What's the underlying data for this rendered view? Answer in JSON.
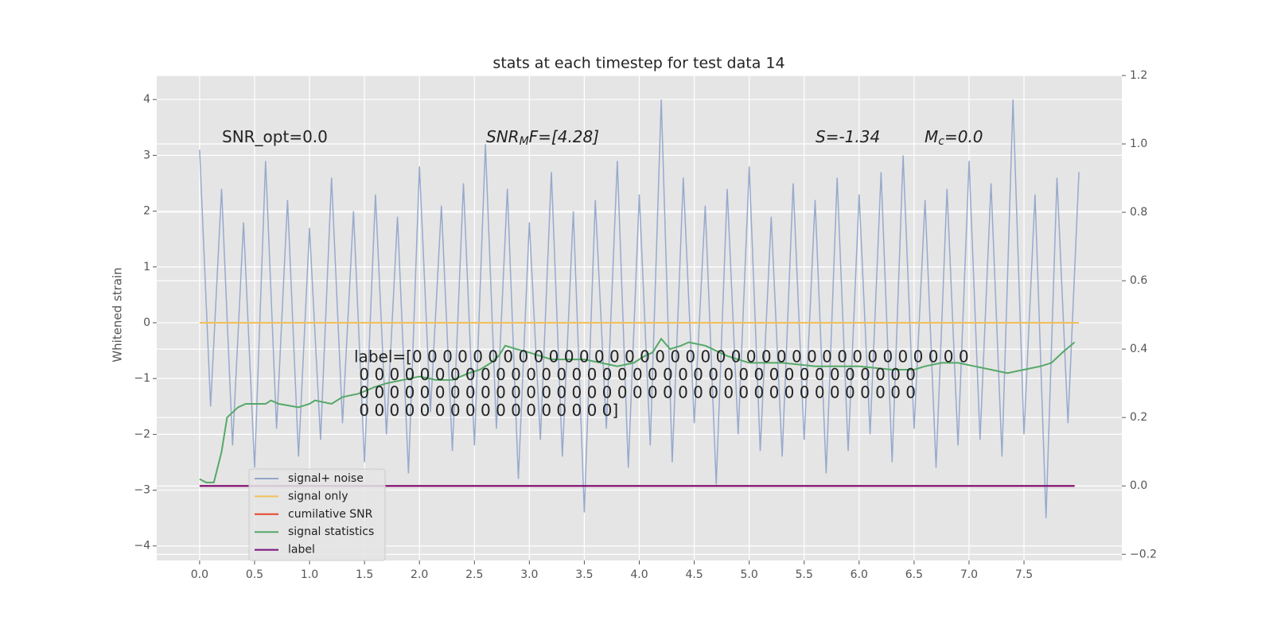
{
  "chart_data": {
    "type": "line",
    "title": "stats at each timestep for test data 14",
    "ylabel": "Whitened strain",
    "xlim": [
      -0.39,
      8.39
    ],
    "ylim": [
      -4.26,
      4.43
    ],
    "y2lim": [
      -0.218,
      1.2
    ],
    "grid": true,
    "legend": "lower left",
    "xticks": [
      {
        "value": 0,
        "label": "0.0"
      },
      {
        "value": 0.5,
        "label": "0.5"
      },
      {
        "value": 1,
        "label": "1.0"
      },
      {
        "value": 1.5,
        "label": "1.5"
      },
      {
        "value": 2,
        "label": "2.0"
      },
      {
        "value": 2.5,
        "label": "2.5"
      },
      {
        "value": 3,
        "label": "3.0"
      },
      {
        "value": 3.5,
        "label": "3.5"
      },
      {
        "value": 4,
        "label": "4.0"
      },
      {
        "value": 4.5,
        "label": "4.5"
      },
      {
        "value": 5,
        "label": "5.0"
      },
      {
        "value": 5.5,
        "label": "5.5"
      },
      {
        "value": 6,
        "label": "6.0"
      },
      {
        "value": 6.5,
        "label": "6.5"
      },
      {
        "value": 7,
        "label": "7.0"
      },
      {
        "value": 7.5,
        "label": "7.5"
      }
    ],
    "yticks": [
      {
        "value": -4,
        "label": "−4"
      },
      {
        "value": -3,
        "label": "−3"
      },
      {
        "value": -2,
        "label": "−2"
      },
      {
        "value": -1,
        "label": "−1"
      },
      0,
      1,
      2,
      3,
      4
    ],
    "y2ticks": [
      {
        "value": -0.2,
        "label": "−0.2"
      },
      {
        "value": 0,
        "label": "0.0"
      },
      {
        "value": 0.2,
        "label": "0.2"
      },
      {
        "value": 0.4,
        "label": "0.4"
      },
      {
        "value": 0.6,
        "label": "0.6"
      },
      {
        "value": 0.8,
        "label": "0.8"
      },
      {
        "value": 1,
        "label": "1.0"
      },
      {
        "value": 1.2,
        "label": "1.2"
      }
    ],
    "annotations": [
      {
        "main": "SNR_opt=0.0"
      },
      {
        "main": "SNR",
        "sub": "M",
        "rest": "F=[4.28]"
      },
      {
        "main": "S",
        "rest": "=-1.34"
      },
      {
        "main": "M",
        "sub": "c",
        "rest": "=0.0"
      }
    ],
    "label_text": [
      "label=[0 0 0 0 0 0 0 0 0 0 0 0 0 0 0 0 0 0 0 0 0 0 0 0 0 0 0 0 0 0 0 0 0 0 0 0 0",
      " 0 0 0 0 0 0 0 0 0 0 0 0 0 0 0 0 0 0 0 0 0 0 0 0 0 0 0 0 0 0 0 0 0 0 0 0 0",
      " 0 0 0 0 0 0 0 0 0 0 0 0 0 0 0 0 0 0 0 0 0 0 0 0 0 0 0 0 0 0 0 0 0 0 0 0 0",
      " 0 0 0 0 0 0 0 0 0 0 0 0 0 0 0 0 0]"
    ],
    "series": [
      {
        "name": "signal+ noise",
        "color": "#92a6cb",
        "axis": "y",
        "x": [
          0,
          0.1,
          0.2,
          0.3,
          0.4,
          0.5,
          0.6,
          0.7,
          0.8,
          0.9,
          1,
          1.1,
          1.2,
          1.3,
          1.4,
          1.5,
          1.6,
          1.7,
          1.8,
          1.9,
          2,
          2.1,
          2.2,
          2.3,
          2.4,
          2.5,
          2.6,
          2.7,
          2.8,
          2.9,
          3,
          3.1,
          3.2,
          3.3,
          3.4,
          3.5,
          3.6,
          3.7,
          3.8,
          3.9,
          4,
          4.1,
          4.2,
          4.3,
          4.4,
          4.5,
          4.6,
          4.7,
          4.8,
          4.9,
          5,
          5.1,
          5.2,
          5.3,
          5.4,
          5.5,
          5.6,
          5.7,
          5.8,
          5.9,
          6,
          6.1,
          6.2,
          6.3,
          6.4,
          6.5,
          6.6,
          6.7,
          6.8,
          6.9,
          7,
          7.1,
          7.2,
          7.3,
          7.4,
          7.5,
          7.6,
          7.7,
          7.8,
          7.9,
          8
        ],
        "values": [
          3.1,
          -1.5,
          2.4,
          -2.2,
          1.8,
          -2.6,
          2.9,
          -1.9,
          2.2,
          -2.4,
          1.7,
          -2.1,
          2.6,
          -1.8,
          2.0,
          -2.5,
          2.3,
          -2.0,
          1.9,
          -2.7,
          2.8,
          -1.6,
          2.1,
          -2.3,
          2.5,
          -2.2,
          3.2,
          -1.9,
          2.4,
          -2.8,
          1.8,
          -2.1,
          2.7,
          -2.4,
          2.0,
          -3.4,
          2.2,
          -1.9,
          2.9,
          -2.6,
          2.3,
          -2.2,
          4.0,
          -2.5,
          2.6,
          -1.8,
          2.1,
          -2.9,
          2.4,
          -2.0,
          2.8,
          -2.3,
          1.9,
          -2.4,
          2.5,
          -2.1,
          2.2,
          -2.7,
          2.6,
          -2.3,
          2.3,
          -2.0,
          2.7,
          -2.5,
          3.0,
          -1.9,
          2.2,
          -2.6,
          2.4,
          -2.2,
          2.9,
          -2.1,
          2.5,
          -2.4,
          4.0,
          -2.0,
          2.3,
          -3.5,
          2.6,
          -1.8,
          2.7
        ]
      },
      {
        "name": "signal only",
        "color": "#f2c05a",
        "axis": "y",
        "x": [
          0,
          8
        ],
        "values": [
          0,
          0
        ]
      },
      {
        "name": "cumilative SNR",
        "color": "#e8432c",
        "axis": "y2",
        "x": [
          0,
          7.96
        ],
        "values": [
          0,
          0
        ]
      },
      {
        "name": "signal statistics",
        "color": "#55a868",
        "axis": "y2",
        "x": [
          0,
          0.06,
          0.13,
          0.2,
          0.25,
          0.35,
          0.42,
          0.6,
          0.65,
          0.72,
          0.9,
          1.0,
          1.05,
          1.2,
          1.3,
          1.45,
          1.6,
          1.7,
          1.85,
          2.0,
          2.15,
          2.3,
          2.45,
          2.55,
          2.65,
          2.72,
          2.78,
          2.88,
          3.0,
          3.2,
          3.5,
          3.65,
          3.8,
          3.95,
          4.05,
          4.12,
          4.2,
          4.28,
          4.38,
          4.45,
          4.6,
          4.8,
          5.0,
          5.3,
          5.6,
          6.0,
          6.3,
          6.5,
          6.6,
          6.75,
          6.9,
          7.05,
          7.2,
          7.35,
          7.5,
          7.65,
          7.75,
          7.85,
          7.96
        ],
        "values": [
          0.02,
          0.01,
          0.01,
          0.1,
          0.2,
          0.23,
          0.24,
          0.24,
          0.25,
          0.24,
          0.23,
          0.24,
          0.25,
          0.24,
          0.26,
          0.27,
          0.29,
          0.3,
          0.31,
          0.32,
          0.31,
          0.31,
          0.33,
          0.34,
          0.36,
          0.38,
          0.41,
          0.4,
          0.39,
          0.37,
          0.37,
          0.36,
          0.35,
          0.36,
          0.38,
          0.39,
          0.43,
          0.4,
          0.41,
          0.42,
          0.41,
          0.38,
          0.36,
          0.36,
          0.35,
          0.35,
          0.34,
          0.34,
          0.35,
          0.36,
          0.36,
          0.35,
          0.34,
          0.33,
          0.34,
          0.35,
          0.36,
          0.39,
          0.42
        ]
      },
      {
        "name": "label",
        "color": "#7b0e7b",
        "axis": "y2",
        "x": [
          0,
          7.96
        ],
        "values": [
          0,
          0
        ]
      }
    ]
  }
}
